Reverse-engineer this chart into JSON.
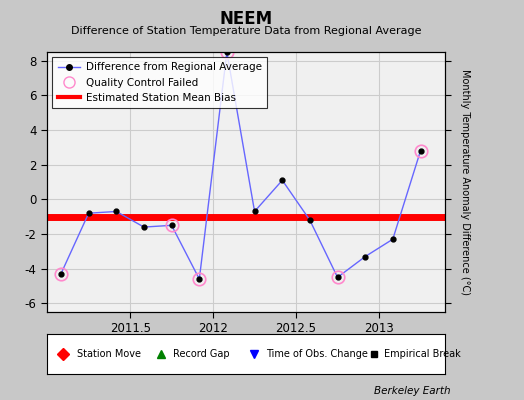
{
  "title": "NEEM",
  "subtitle": "Difference of Station Temperature Data from Regional Average",
  "ylabel_right": "Monthly Temperature Anomaly Difference (°C)",
  "credit": "Berkeley Earth",
  "bias_value": -1.0,
  "xlim": [
    2011.0,
    2013.4
  ],
  "ylim": [
    -6.5,
    8.5
  ],
  "yticks": [
    -6,
    -4,
    -2,
    0,
    2,
    4,
    6,
    8
  ],
  "xticks": [
    2011.5,
    2012.0,
    2012.5,
    2013.0
  ],
  "xticklabels": [
    "2011.5",
    "2012",
    "2012.5",
    "2013"
  ],
  "line_color": "#6666ff",
  "dot_color": "black",
  "bias_color": "red",
  "qc_edge_color": "#ff88cc",
  "plot_bg_color": "#f0f0f0",
  "fig_bg_color": "#c8c8c8",
  "right_panel_color": "#d8d8d8",
  "time_points": [
    2011.083,
    2011.25,
    2011.417,
    2011.583,
    2011.75,
    2011.917,
    2012.083,
    2012.25,
    2012.417,
    2012.583,
    2012.75,
    2012.917,
    2013.083,
    2013.25
  ],
  "values": [
    -4.3,
    -0.8,
    -0.7,
    -1.6,
    -1.5,
    -4.6,
    9.5,
    -0.7,
    1.1,
    -1.2,
    -4.5,
    -3.3,
    -2.3,
    2.8
  ],
  "qc_failed_indices": [
    0,
    4,
    5,
    6,
    10,
    13
  ],
  "clip_top": 8.5,
  "grid_color": "#cccccc",
  "bias_lw": 5
}
